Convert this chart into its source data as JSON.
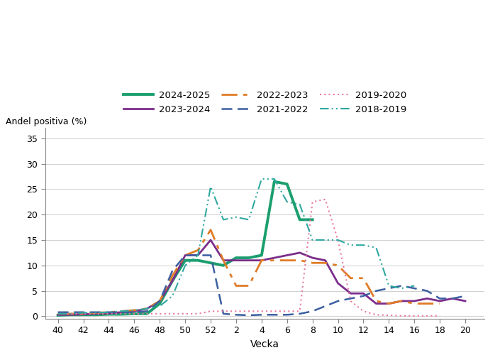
{
  "ylabel": "Andel positiva (%)",
  "xlabel": "Vecka",
  "background_color": "#ffffff",
  "plot_bg_color": "#ffffff",
  "x_ticks_labels": [
    "40",
    "42",
    "44",
    "46",
    "48",
    "50",
    "52",
    "2",
    "4",
    "6",
    "8",
    "10",
    "12",
    "14",
    "16",
    "18",
    "20"
  ],
  "x_ticks_pos": [
    40,
    42,
    44,
    46,
    48,
    50,
    52,
    54,
    56,
    58,
    60,
    62,
    64,
    66,
    68,
    70,
    72
  ],
  "ylim": [
    -0.5,
    37
  ],
  "y_ticks": [
    0,
    5,
    10,
    15,
    20,
    25,
    30,
    35
  ],
  "xlim": [
    39.0,
    73.5
  ],
  "series": [
    {
      "label": "2024-2025",
      "color": "#1b9e6e",
      "linewidth": 2.8,
      "linestyle": "solid",
      "x": [
        40,
        41,
        42,
        43,
        44,
        45,
        46,
        47,
        48,
        49,
        50,
        51,
        52,
        53,
        54,
        55,
        56,
        57,
        58,
        59,
        60
      ],
      "y": [
        0.2,
        0.3,
        0.3,
        0.3,
        0.4,
        0.4,
        0.5,
        0.5,
        2.5,
        7.0,
        11.0,
        11.0,
        10.5,
        10.0,
        11.5,
        11.5,
        12.0,
        26.5,
        26.0,
        19.0,
        19.0
      ]
    },
    {
      "label": "2023-2024",
      "color": "#7b2d8b",
      "linewidth": 2.0,
      "linestyle": "solid",
      "x": [
        40,
        41,
        42,
        43,
        44,
        45,
        46,
        47,
        48,
        49,
        50,
        51,
        52,
        53,
        54,
        55,
        56,
        57,
        58,
        59,
        60,
        61,
        62,
        63,
        64,
        65,
        66,
        67,
        68,
        69,
        70,
        71,
        72
      ],
      "y": [
        0.3,
        0.3,
        0.4,
        0.5,
        0.6,
        0.8,
        1.0,
        1.5,
        3.0,
        7.0,
        12.0,
        12.0,
        15.0,
        11.0,
        11.0,
        11.0,
        11.0,
        11.5,
        12.0,
        12.5,
        11.5,
        11.0,
        6.5,
        4.5,
        4.5,
        2.5,
        2.5,
        3.0,
        3.0,
        3.5,
        3.0,
        3.5,
        3.0
      ]
    },
    {
      "label": "2022-2023",
      "color": "#e07b27",
      "linewidth": 2.0,
      "linestyle": "dashdot",
      "x": [
        40,
        41,
        42,
        43,
        44,
        45,
        46,
        47,
        48,
        49,
        50,
        51,
        52,
        53,
        54,
        55,
        56,
        57,
        58,
        59,
        60,
        61,
        62,
        63,
        64,
        65,
        66,
        67,
        68,
        69,
        70
      ],
      "y": [
        0.5,
        0.5,
        0.5,
        0.7,
        0.8,
        1.0,
        1.2,
        1.5,
        3.0,
        8.0,
        12.0,
        13.0,
        17.0,
        11.0,
        6.0,
        6.0,
        11.0,
        11.0,
        11.0,
        11.0,
        10.5,
        10.5,
        10.0,
        7.5,
        7.5,
        3.0,
        2.5,
        3.0,
        2.5,
        2.5,
        2.5
      ]
    },
    {
      "label": "2021-2022",
      "color": "#3b5fa0",
      "linewidth": 1.8,
      "linestyle": "dashed",
      "x": [
        40,
        41,
        42,
        43,
        44,
        45,
        46,
        47,
        48,
        49,
        50,
        51,
        52,
        53,
        54,
        55,
        56,
        57,
        58,
        59,
        60,
        61,
        62,
        63,
        64,
        65,
        66,
        67,
        68,
        69,
        70,
        71,
        72
      ],
      "y": [
        0.8,
        0.8,
        0.8,
        0.8,
        0.8,
        0.8,
        0.8,
        1.0,
        3.0,
        9.0,
        12.0,
        12.0,
        12.0,
        0.5,
        0.3,
        0.2,
        0.3,
        0.3,
        0.3,
        0.5,
        1.0,
        2.0,
        3.0,
        3.5,
        4.0,
        5.0,
        5.5,
        6.0,
        5.5,
        5.0,
        3.5,
        3.5,
        4.0
      ]
    },
    {
      "label": "2019-2020",
      "color": "#e878a0",
      "linewidth": 1.5,
      "linestyle": "dotted",
      "x": [
        40,
        41,
        42,
        43,
        44,
        45,
        46,
        47,
        48,
        49,
        50,
        51,
        52,
        53,
        54,
        55,
        56,
        57,
        58,
        59,
        60,
        61,
        62,
        63,
        64,
        65,
        66,
        67,
        68,
        69,
        70
      ],
      "y": [
        0.5,
        0.5,
        0.5,
        0.5,
        0.5,
        0.5,
        0.5,
        0.5,
        0.5,
        0.5,
        0.5,
        0.5,
        1.0,
        1.0,
        1.0,
        1.0,
        1.0,
        1.0,
        1.0,
        1.0,
        22.5,
        23.0,
        15.0,
        3.0,
        1.0,
        0.3,
        0.2,
        0.1,
        0.1,
        0.1,
        0.1
      ]
    },
    {
      "label": "2018-2019",
      "color": "#2fa8a0",
      "linewidth": 1.5,
      "linestyle": "dashdotdotted",
      "x": [
        40,
        41,
        42,
        43,
        44,
        45,
        46,
        47,
        48,
        49,
        50,
        51,
        52,
        53,
        54,
        55,
        56,
        57,
        58,
        59,
        60,
        61,
        62,
        63,
        64,
        65,
        66,
        67,
        68
      ],
      "y": [
        0.5,
        0.5,
        0.7,
        0.7,
        0.8,
        1.0,
        1.2,
        1.5,
        2.0,
        4.0,
        10.0,
        12.0,
        25.5,
        19.0,
        19.5,
        19.0,
        27.0,
        27.0,
        22.5,
        22.0,
        15.0,
        15.0,
        15.0,
        14.0,
        14.0,
        13.5,
        6.0,
        5.5,
        6.0
      ]
    }
  ],
  "legend_order": [
    "2024-2025",
    "2023-2024",
    "2022-2023",
    "2021-2022",
    "2019-2020",
    "2018-2019"
  ],
  "legend_styles": {
    "2024-2025": {
      "color": "#1b9e6e",
      "lw": 2.8,
      "ls": "solid"
    },
    "2023-2024": {
      "color": "#7b2d8b",
      "lw": 2.0,
      "ls": "solid"
    },
    "2022-2023": {
      "color": "#e07b27",
      "lw": 2.0,
      "ls": "dashdot"
    },
    "2021-2022": {
      "color": "#3b5fa0",
      "lw": 1.8,
      "ls": "dashed"
    },
    "2019-2020": {
      "color": "#e878a0",
      "lw": 1.5,
      "ls": "dotted"
    },
    "2018-2019": {
      "color": "#2fa8a0",
      "lw": 1.5,
      "ls": "dashdotdotted"
    }
  }
}
